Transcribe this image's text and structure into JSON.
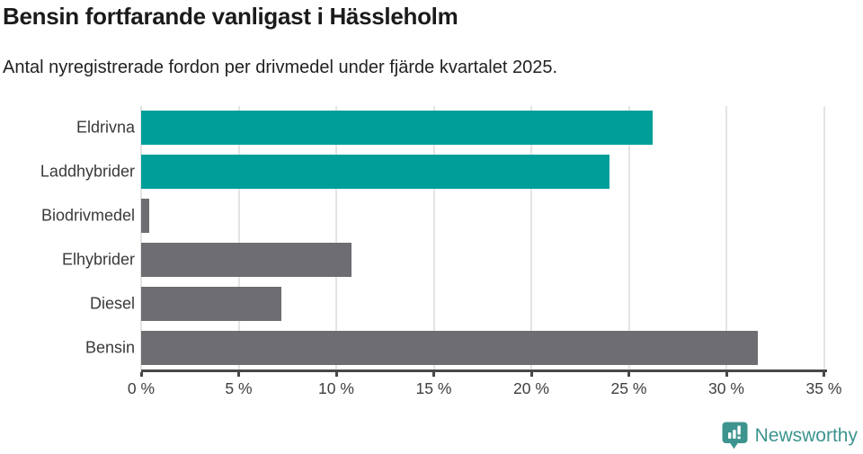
{
  "header": {
    "title": "Bensin fortfarande vanligast i Hässleholm",
    "subtitle": "Antal nyregistrerade fordon per drivmedel under fjärde kvartalet 2025."
  },
  "chart_data": {
    "type": "bar",
    "orientation": "horizontal",
    "title": "Bensin fortfarande vanligast i Hässleholm",
    "subtitle": "Antal nyregistrerade fordon per drivmedel under fjärde kvartalet 2025.",
    "categories": [
      "Eldrivna",
      "Laddhybrider",
      "Biodrivmedel",
      "Elhybrider",
      "Diesel",
      "Bensin"
    ],
    "values": [
      26.2,
      24.0,
      0.4,
      10.8,
      7.2,
      31.6
    ],
    "unit": "%",
    "xlim": [
      0,
      35
    ],
    "x_ticks": [
      0,
      5,
      10,
      15,
      20,
      25,
      30,
      35
    ],
    "x_tick_labels": [
      "0 %",
      "5 %",
      "10 %",
      "15 %",
      "20 %",
      "25 %",
      "30 %",
      "35 %"
    ],
    "bar_colors": [
      "#009e99",
      "#009e99",
      "#6d6d72",
      "#6d6d72",
      "#6d6d72",
      "#6d6d72"
    ],
    "grid": "vertical-only",
    "legend": "none"
  },
  "colors": {
    "teal_bar": "#009e99",
    "gray_bar": "#6d6d72",
    "axis": "#48484b",
    "gridline": "#e4e4e4",
    "title_text": "#1b1b1b",
    "label_text": "#3a3a3a",
    "brand_teal": "#3d948e"
  },
  "footer": {
    "brand": "Newsworthy",
    "logo_icon": "newsworthy-speech-bubble-bar-chart-icon"
  }
}
